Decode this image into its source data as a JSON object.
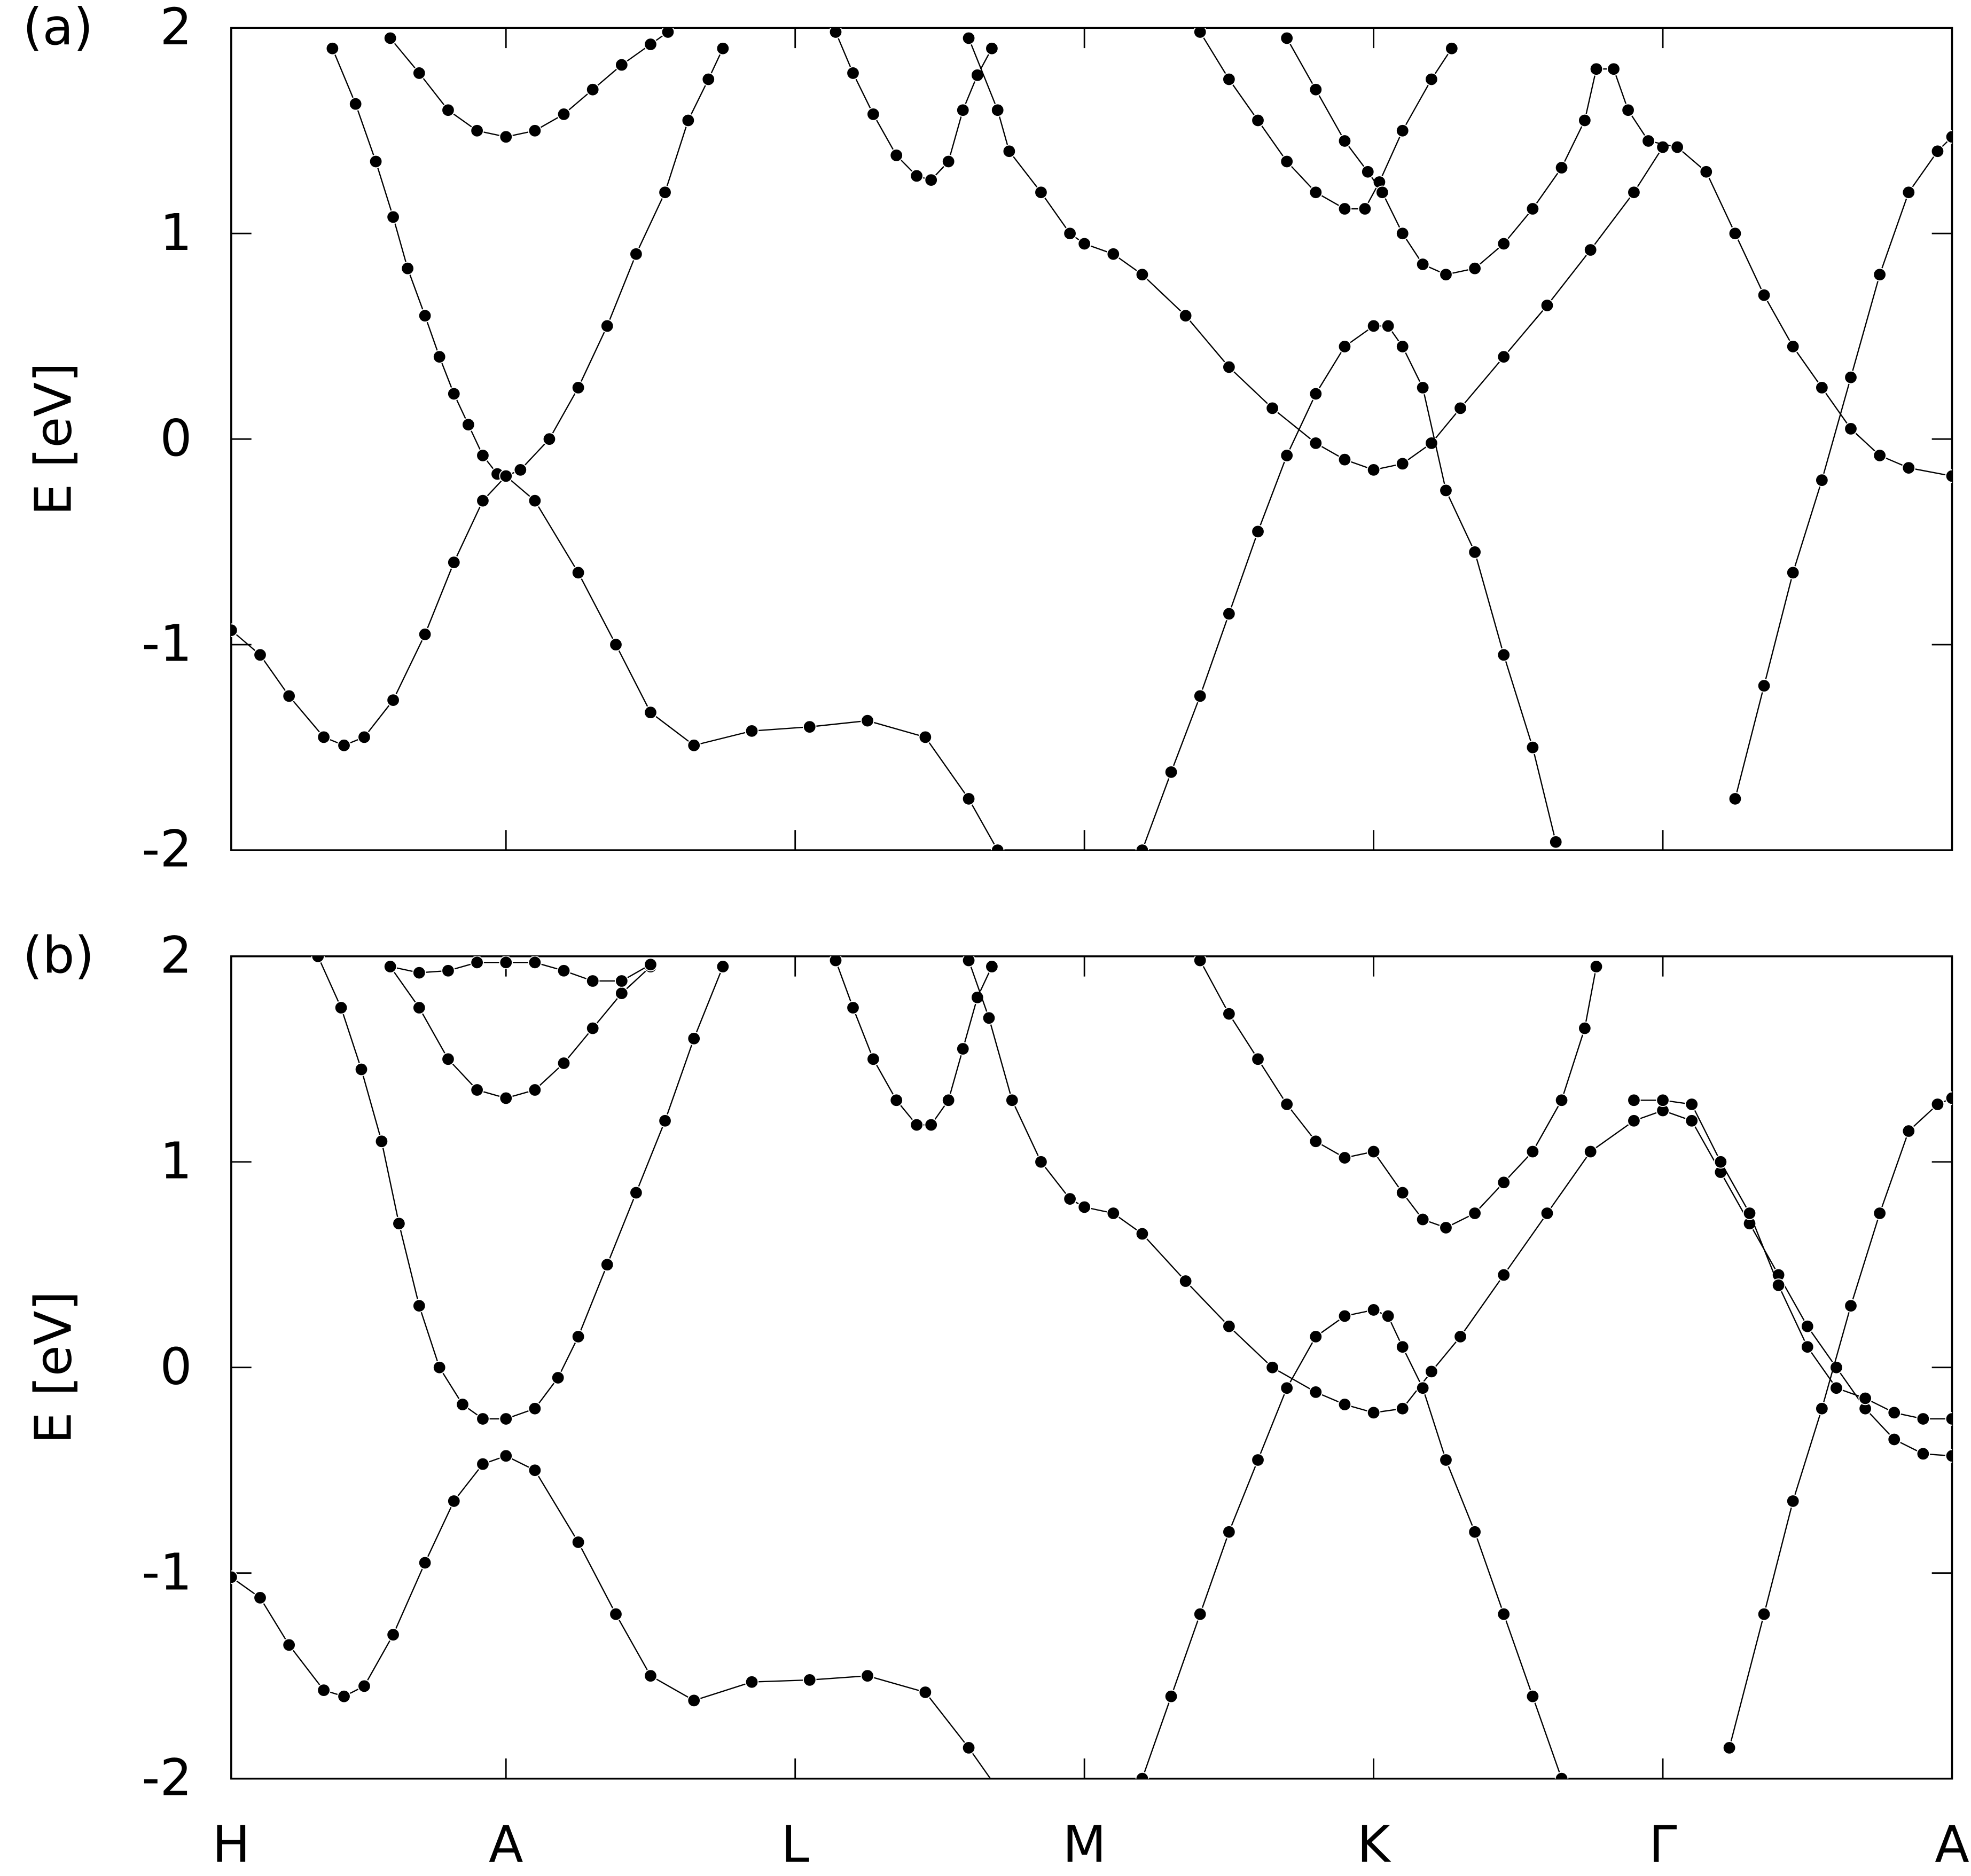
{
  "chart_data": [
    {
      "type": "line",
      "panel_label": "(a)",
      "ylabel": "E [eV]",
      "color": "#000000",
      "markers": true,
      "xlim": [
        0,
        5.95
      ],
      "xticks": [
        0,
        0.95,
        1.95,
        2.95,
        3.95,
        4.95,
        5.95
      ],
      "ylim": [
        -2,
        2
      ],
      "yticks": [
        2,
        1,
        0,
        -1,
        -2
      ],
      "series": [
        {
          "x": [
            0,
            0.1,
            0.2,
            0.32,
            0.39,
            0.46,
            0.56,
            0.67,
            0.77,
            0.87,
            0.95,
            1.05,
            1.2,
            1.33,
            1.45,
            1.6,
            1.8,
            2.0,
            2.2,
            2.4,
            2.55,
            2.65
          ],
          "values": [
            -0.93,
            -1.05,
            -1.25,
            -1.45,
            -1.49,
            -1.45,
            -1.27,
            -0.95,
            -0.6,
            -0.3,
            -0.18,
            -0.3,
            -0.65,
            -1.0,
            -1.33,
            -1.49,
            -1.42,
            -1.4,
            -1.37,
            -1.45,
            -1.75,
            -2.0
          ]
        },
        {
          "x": [
            0.35,
            0.43,
            0.5,
            0.56,
            0.61,
            0.67,
            0.72,
            0.77,
            0.82,
            0.87,
            0.92,
            0.95,
            1.0,
            1.1,
            1.2,
            1.3,
            1.4,
            1.5,
            1.58,
            1.65,
            1.7
          ],
          "values": [
            1.9,
            1.63,
            1.35,
            1.08,
            0.83,
            0.6,
            0.4,
            0.22,
            0.07,
            -0.08,
            -0.17,
            -0.18,
            -0.15,
            0.0,
            0.25,
            0.55,
            0.9,
            1.2,
            1.55,
            1.75,
            1.9
          ]
        },
        {
          "x": [
            0.55,
            0.65,
            0.75,
            0.85,
            0.95,
            1.05,
            1.15,
            1.25,
            1.35,
            1.45,
            1.51
          ],
          "values": [
            1.95,
            1.78,
            1.6,
            1.5,
            1.47,
            1.5,
            1.58,
            1.7,
            1.82,
            1.92,
            1.98
          ]
        },
        {
          "x": [
            2.09,
            2.15,
            2.22,
            2.3,
            2.37,
            2.42,
            2.48,
            2.53,
            2.58,
            2.63
          ],
          "values": [
            1.98,
            1.78,
            1.58,
            1.38,
            1.28,
            1.26,
            1.35,
            1.6,
            1.77,
            1.9
          ]
        },
        {
          "x": [
            2.55,
            2.65,
            2.69,
            2.8,
            2.9,
            2.95,
            3.05,
            3.15,
            3.3,
            3.45,
            3.6,
            3.75,
            3.85,
            3.95,
            4.05,
            4.15,
            4.25,
            4.4,
            4.55,
            4.7,
            4.85,
            4.95
          ],
          "values": [
            1.95,
            1.6,
            1.4,
            1.2,
            1.0,
            0.95,
            0.9,
            0.8,
            0.6,
            0.35,
            0.15,
            -0.02,
            -0.1,
            -0.15,
            -0.12,
            -0.02,
            0.15,
            0.4,
            0.65,
            0.92,
            1.2,
            1.42
          ]
        },
        {
          "x": [
            3.35,
            3.45,
            3.55,
            3.65,
            3.75,
            3.85,
            3.92,
            3.97,
            4.05,
            4.15,
            4.22
          ],
          "values": [
            1.98,
            1.75,
            1.55,
            1.35,
            1.2,
            1.12,
            1.12,
            1.25,
            1.5,
            1.75,
            1.9
          ]
        },
        {
          "x": [
            3.65,
            3.75,
            3.85,
            3.93,
            3.98,
            4.05,
            4.12,
            4.2,
            4.3,
            4.4,
            4.5,
            4.6,
            4.68,
            4.72,
            4.78,
            4.83,
            4.9,
            5.0,
            5.1,
            5.2,
            5.3,
            5.4,
            5.5,
            5.6,
            5.7,
            5.8,
            5.95
          ],
          "values": [
            1.95,
            1.7,
            1.45,
            1.3,
            1.2,
            1.0,
            0.85,
            0.8,
            0.83,
            0.95,
            1.12,
            1.32,
            1.55,
            1.8,
            1.8,
            1.6,
            1.45,
            1.42,
            1.3,
            1.0,
            0.7,
            0.45,
            0.25,
            0.05,
            -0.08,
            -0.14,
            -0.18
          ]
        },
        {
          "x": [
            3.15,
            3.25,
            3.35,
            3.45,
            3.55,
            3.65,
            3.75,
            3.85,
            3.95,
            4.0,
            4.05,
            4.12,
            4.2,
            4.3,
            4.4,
            4.5,
            4.58
          ],
          "values": [
            -2.0,
            -1.62,
            -1.25,
            -0.85,
            -0.45,
            -0.08,
            0.22,
            0.45,
            0.55,
            0.55,
            0.45,
            0.25,
            -0.25,
            -0.55,
            -1.05,
            -1.5,
            -1.96
          ]
        },
        {
          "x": [
            5.2,
            5.3,
            5.4,
            5.5,
            5.6,
            5.7,
            5.8,
            5.9,
            5.95
          ],
          "values": [
            -1.75,
            -1.2,
            -0.65,
            -0.2,
            0.3,
            0.8,
            1.2,
            1.4,
            1.47
          ]
        }
      ]
    },
    {
      "type": "line",
      "panel_label": "(b)",
      "ylabel": "E [eV]",
      "color": "#000000",
      "markers": true,
      "xlim": [
        0,
        5.95
      ],
      "xticks": [
        {
          "value": 0,
          "label": "H"
        },
        {
          "value": 0.95,
          "label": "A"
        },
        {
          "value": 1.95,
          "label": "L"
        },
        {
          "value": 2.95,
          "label": "M"
        },
        {
          "value": 3.95,
          "label": "K"
        },
        {
          "value": 4.95,
          "label": "Γ"
        },
        {
          "value": 5.95,
          "label": "A"
        }
      ],
      "ylim": [
        -2,
        2
      ],
      "yticks": [
        2,
        1,
        0,
        -1,
        -2
      ],
      "series": [
        {
          "x": [
            0,
            0.1,
            0.2,
            0.32,
            0.39,
            0.46,
            0.56,
            0.67,
            0.77,
            0.87,
            0.95,
            1.05,
            1.2,
            1.33,
            1.45,
            1.6,
            1.8,
            2.0,
            2.2,
            2.4,
            2.55,
            2.65
          ],
          "values": [
            -1.02,
            -1.12,
            -1.35,
            -1.57,
            -1.6,
            -1.55,
            -1.3,
            -0.95,
            -0.65,
            -0.47,
            -0.43,
            -0.5,
            -0.85,
            -1.2,
            -1.5,
            -1.62,
            -1.53,
            -1.52,
            -1.5,
            -1.58,
            -1.85,
            -2.05
          ]
        },
        {
          "x": [
            0.3,
            0.38,
            0.45,
            0.52,
            0.58,
            0.65,
            0.72,
            0.8,
            0.87,
            0.95,
            1.05,
            1.13,
            1.2,
            1.3,
            1.4,
            1.5,
            1.6,
            1.7
          ],
          "values": [
            2.0,
            1.75,
            1.45,
            1.1,
            0.7,
            0.3,
            0.0,
            -0.18,
            -0.25,
            -0.25,
            -0.2,
            -0.05,
            0.15,
            0.5,
            0.85,
            1.2,
            1.6,
            1.95
          ]
        },
        {
          "x": [
            0.55,
            0.65,
            0.75,
            0.85,
            0.95,
            1.05,
            1.15,
            1.25,
            1.35,
            1.45
          ],
          "values": [
            1.95,
            1.75,
            1.5,
            1.35,
            1.31,
            1.35,
            1.48,
            1.65,
            1.82,
            1.95
          ]
        },
        {
          "x": [
            0.55,
            0.65,
            0.75,
            0.85,
            0.95,
            1.05,
            1.15,
            1.25,
            1.35,
            1.45
          ],
          "values": [
            1.95,
            1.92,
            1.93,
            1.97,
            1.97,
            1.97,
            1.93,
            1.88,
            1.88,
            1.96
          ]
        },
        {
          "x": [
            2.09,
            2.15,
            2.22,
            2.3,
            2.37,
            2.42,
            2.48,
            2.53,
            2.58,
            2.63
          ],
          "values": [
            1.98,
            1.75,
            1.5,
            1.3,
            1.18,
            1.18,
            1.3,
            1.55,
            1.8,
            1.95
          ]
        },
        {
          "x": [
            2.55,
            2.62,
            2.7,
            2.8,
            2.9,
            2.95,
            3.05,
            3.15,
            3.3,
            3.45,
            3.6,
            3.75,
            3.85,
            3.95,
            4.05,
            4.15,
            4.25,
            4.4,
            4.55,
            4.7,
            4.85,
            4.95,
            5.05,
            5.15,
            5.25,
            5.35,
            5.45,
            5.55,
            5.65,
            5.75,
            5.85,
            5.95
          ],
          "values": [
            1.98,
            1.7,
            1.3,
            1.0,
            0.82,
            0.78,
            0.75,
            0.65,
            0.42,
            0.2,
            0.0,
            -0.12,
            -0.18,
            -0.22,
            -0.2,
            -0.02,
            0.15,
            0.45,
            0.75,
            1.05,
            1.2,
            1.25,
            1.2,
            0.95,
            0.7,
            0.45,
            0.2,
            0.0,
            -0.2,
            -0.35,
            -0.42,
            -0.43
          ]
        },
        {
          "x": [
            3.35,
            3.45,
            3.55,
            3.65,
            3.75,
            3.85,
            3.95,
            4.05,
            4.12,
            4.2,
            4.3,
            4.4,
            4.5,
            4.6,
            4.68,
            4.72
          ],
          "values": [
            1.98,
            1.72,
            1.5,
            1.28,
            1.1,
            1.02,
            1.05,
            0.85,
            0.72,
            0.68,
            0.75,
            0.9,
            1.05,
            1.3,
            1.65,
            1.95
          ]
        },
        {
          "x": [
            3.15,
            3.25,
            3.35,
            3.45,
            3.55,
            3.65,
            3.75,
            3.85,
            3.95,
            4.0,
            4.05,
            4.12,
            4.2,
            4.3,
            4.4,
            4.5,
            4.6
          ],
          "values": [
            -2.0,
            -1.6,
            -1.2,
            -0.8,
            -0.45,
            -0.1,
            0.15,
            0.25,
            0.28,
            0.25,
            0.1,
            -0.1,
            -0.45,
            -0.8,
            -1.2,
            -1.6,
            -2.0
          ]
        },
        {
          "x": [
            5.18,
            5.3,
            5.4,
            5.5,
            5.6,
            5.7,
            5.8,
            5.9,
            5.95
          ],
          "values": [
            -1.85,
            -1.2,
            -0.65,
            -0.2,
            0.3,
            0.75,
            1.15,
            1.28,
            1.31
          ]
        },
        {
          "x": [
            4.85,
            4.95,
            5.05,
            5.15,
            5.25,
            5.35,
            5.45,
            5.55,
            5.65,
            5.75,
            5.85,
            5.95
          ],
          "values": [
            1.3,
            1.3,
            1.28,
            1.0,
            0.75,
            0.4,
            0.1,
            -0.1,
            -0.15,
            -0.22,
            -0.25,
            -0.25
          ]
        }
      ]
    }
  ]
}
